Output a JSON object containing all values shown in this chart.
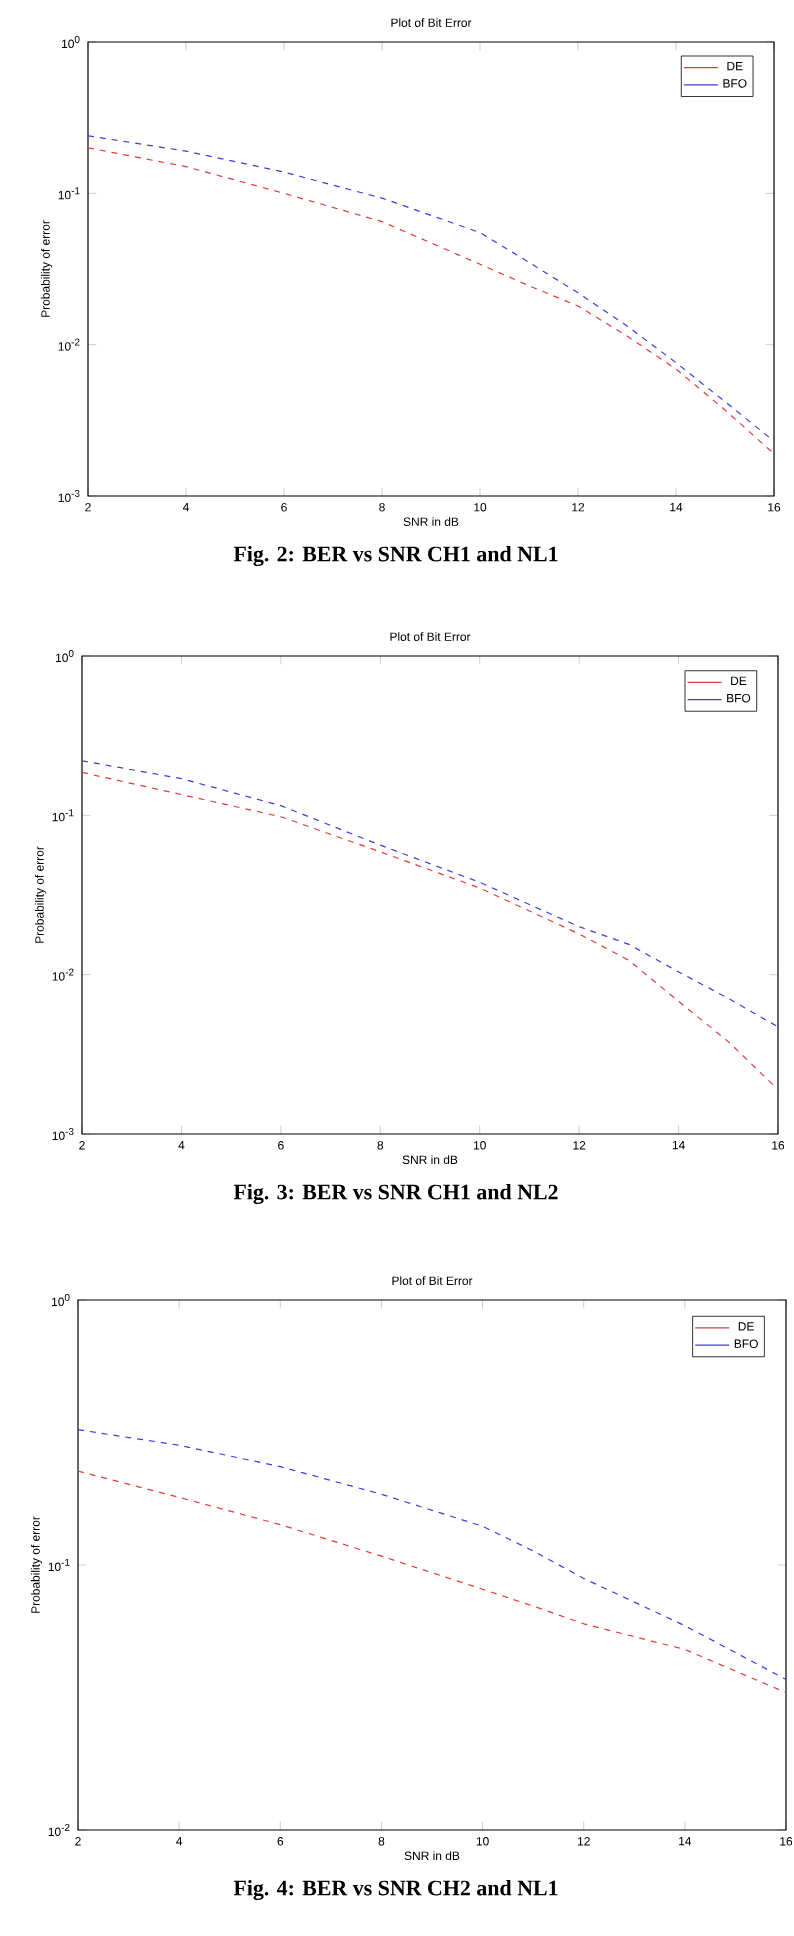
{
  "chart_data": [
    {
      "type": "line",
      "title": "Plot of Bit Error",
      "xlabel": "SNR in dB",
      "ylabel": "Probability of error",
      "log": "y",
      "legend": "top right",
      "marker": "none",
      "line_style": "dashed",
      "x": [
        2,
        4,
        6,
        8,
        10,
        11,
        12,
        13,
        14,
        15,
        16
      ],
      "series": [
        {
          "name": "DE",
          "color": "#e03c3c",
          "values": [
            0.2,
            0.15,
            0.1,
            0.065,
            0.034,
            0.0245,
            0.018,
            0.0114,
            0.0069,
            0.0037,
            0.0019
          ]
        },
        {
          "name": "BFO",
          "color": "#3c3ce0",
          "values": [
            0.24,
            0.19,
            0.138,
            0.093,
            0.055,
            0.035,
            0.022,
            0.0133,
            0.0076,
            0.0042,
            0.0023
          ]
        }
      ],
      "xlim": [
        2,
        16
      ],
      "xticks": [
        2,
        4,
        6,
        8,
        10,
        12,
        14,
        16
      ],
      "ylim": [
        0.001,
        1
      ],
      "yticks": [
        {
          "value": 0.001,
          "label": "10$^{-3}$"
        },
        {
          "value": 0.01,
          "label": "10$^{-2}$"
        },
        {
          "value": 0.1,
          "label": "10$^{-1}$"
        },
        {
          "value": 1,
          "label": "10$^{0}$"
        }
      ],
      "annotations": [
        "Fig. 2: BER vs SNR CH1 and NL1"
      ]
    },
    {
      "type": "line",
      "title": "Plot of Bit Error",
      "xlabel": "SNR in dB",
      "ylabel": "Probability of error",
      "log": "y",
      "legend": "top right",
      "marker": "none",
      "line_style": "dashed",
      "x": [
        2,
        4,
        6,
        8,
        10,
        12,
        13,
        14,
        15,
        16
      ],
      "series": [
        {
          "name": "DE",
          "color": "#e03c3c",
          "values": [
            0.186,
            0.135,
            0.098,
            0.059,
            0.035,
            0.018,
            0.0123,
            0.0068,
            0.0038,
            0.0019
          ]
        },
        {
          "name": "BFO",
          "color": "#3c3ce0",
          "values": [
            0.22,
            0.17,
            0.115,
            0.065,
            0.038,
            0.02,
            0.0155,
            0.0104,
            0.0071,
            0.0047
          ]
        }
      ],
      "xlim": [
        2,
        16
      ],
      "xticks": [
        2,
        4,
        6,
        8,
        10,
        12,
        14,
        16
      ],
      "ylim": [
        0.001,
        1
      ],
      "yticks": [
        {
          "value": 0.001,
          "label": "10$^{-3}$"
        },
        {
          "value": 0.01,
          "label": "10$^{-2}$"
        },
        {
          "value": 0.1,
          "label": "10$^{-1}$"
        },
        {
          "value": 1,
          "label": "10$^{0}$"
        }
      ],
      "annotations": [
        "Fig. 3: BER vs SNR CH1 and NL2"
      ]
    },
    {
      "type": "line",
      "title": "Plot of Bit Error",
      "xlabel": "SNR in dB",
      "ylabel": "Probability of error",
      "log": "y",
      "legend": "top right",
      "marker": "none",
      "line_style": "dashed",
      "x": [
        2,
        4,
        6,
        8,
        10,
        11,
        12,
        14,
        16
      ],
      "series": [
        {
          "name": "DE",
          "color": "#e03c3c",
          "values": [
            0.226,
            0.18,
            0.142,
            0.108,
            0.081,
            0.07,
            0.06,
            0.048,
            0.033
          ]
        },
        {
          "name": "BFO",
          "color": "#3c3ce0",
          "values": [
            0.324,
            0.283,
            0.235,
            0.185,
            0.14,
            0.113,
            0.089,
            0.059,
            0.037
          ]
        }
      ],
      "xlim": [
        2,
        16
      ],
      "xticks": [
        2,
        4,
        6,
        8,
        10,
        12,
        14,
        16
      ],
      "ylim": [
        0.01,
        1
      ],
      "yticks": [
        {
          "value": 0.01,
          "label": "10$^{-2}$"
        },
        {
          "value": 0.1,
          "label": "10$^{-1}$"
        },
        {
          "value": 1,
          "label": "10$^{0}$"
        }
      ],
      "annotations": [
        "Fig. 4: BER vs SNR CH2 and NL1"
      ]
    }
  ]
}
